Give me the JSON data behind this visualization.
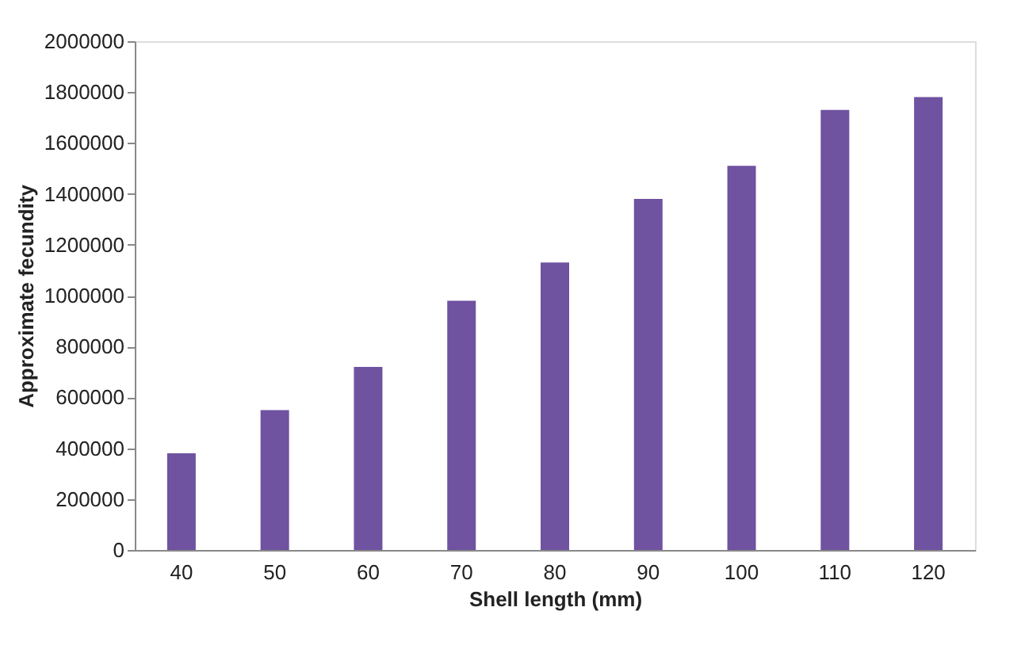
{
  "chart_data": {
    "type": "bar",
    "xlabel": "Shell length (mm)",
    "ylabel": "Approximate fecundity",
    "categories": [
      "40",
      "50",
      "60",
      "70",
      "80",
      "90",
      "100",
      "110",
      "120"
    ],
    "values": [
      380000,
      550000,
      720000,
      980000,
      1130000,
      1380000,
      1510000,
      1730000,
      1780000
    ],
    "color": "#6f52a0",
    "ylim": [
      0,
      2000000
    ],
    "yticks": [
      0,
      200000,
      400000,
      600000,
      800000,
      1000000,
      1200000,
      1400000,
      1600000,
      1800000,
      2000000
    ],
    "grid": false
  }
}
